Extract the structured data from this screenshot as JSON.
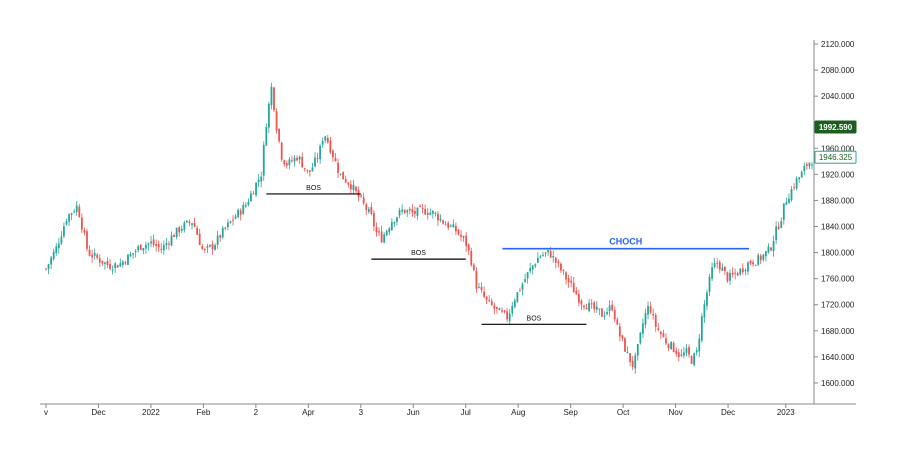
{
  "chart_data": {
    "type": "candlestick",
    "colors": {
      "up": "#26a69a",
      "down": "#ef5350",
      "choch": "#2962ff",
      "bos": "#000000",
      "price_badge": "#1b5e20"
    },
    "y_axis": {
      "ylim": [
        1580,
        2120
      ],
      "ticks": [
        "1600.000",
        "1640.000",
        "1680.000",
        "1720.000",
        "1760.000",
        "1800.000",
        "1840.000",
        "1880.000",
        "1920.000",
        "1960.000",
        "2040.000",
        "2080.000",
        "2120.000"
      ],
      "tick_values": [
        1600,
        1640,
        1680,
        1720,
        1760,
        1800,
        1840,
        1880,
        1920,
        1960,
        2040,
        2080,
        2120
      ]
    },
    "x_axis": {
      "labels": [
        "v",
        "Dec",
        "2022",
        "Feb",
        "2",
        "Apr",
        "3",
        "Jun",
        "Jul",
        "Aug",
        "Sep",
        "Oct",
        "Nov",
        "Dec",
        "2023"
      ],
      "positions": [
        0,
        10,
        20,
        30,
        40,
        50,
        60,
        70,
        80,
        90,
        100,
        110,
        120,
        130,
        141
      ]
    },
    "series_path": [
      [
        0,
        1775
      ],
      [
        2,
        1808
      ],
      [
        4,
        1855
      ],
      [
        6,
        1872
      ],
      [
        8,
        1800
      ],
      [
        10,
        1790
      ],
      [
        12,
        1780
      ],
      [
        14,
        1782
      ],
      [
        16,
        1795
      ],
      [
        18,
        1810
      ],
      [
        20,
        1815
      ],
      [
        22,
        1805
      ],
      [
        24,
        1825
      ],
      [
        26,
        1840
      ],
      [
        28,
        1848
      ],
      [
        30,
        1800
      ],
      [
        32,
        1812
      ],
      [
        34,
        1835
      ],
      [
        36,
        1855
      ],
      [
        38,
        1872
      ],
      [
        40,
        1905
      ],
      [
        41,
        1920
      ],
      [
        42,
        2000
      ],
      [
        43,
        2055
      ],
      [
        44,
        1990
      ],
      [
        45,
        1945
      ],
      [
        46,
        1935
      ],
      [
        48,
        1948
      ],
      [
        50,
        1920
      ],
      [
        52,
        1950
      ],
      [
        53,
        1985
      ],
      [
        54,
        1965
      ],
      [
        56,
        1920
      ],
      [
        58,
        1905
      ],
      [
        60,
        1880
      ],
      [
        62,
        1855
      ],
      [
        63,
        1830
      ],
      [
        64,
        1822
      ],
      [
        66,
        1850
      ],
      [
        68,
        1865
      ],
      [
        70,
        1860
      ],
      [
        72,
        1865
      ],
      [
        74,
        1860
      ],
      [
        76,
        1845
      ],
      [
        78,
        1835
      ],
      [
        80,
        1815
      ],
      [
        81,
        1790
      ],
      [
        82,
        1750
      ],
      [
        84,
        1725
      ],
      [
        86,
        1710
      ],
      [
        88,
        1700
      ],
      [
        89,
        1725
      ],
      [
        90,
        1740
      ],
      [
        92,
        1770
      ],
      [
        94,
        1795
      ],
      [
        96,
        1800
      ],
      [
        98,
        1775
      ],
      [
        100,
        1750
      ],
      [
        102,
        1725
      ],
      [
        104,
        1715
      ],
      [
        106,
        1705
      ],
      [
        108,
        1718
      ],
      [
        109,
        1680
      ],
      [
        110,
        1660
      ],
      [
        111,
        1640
      ],
      [
        112,
        1625
      ],
      [
        113,
        1660
      ],
      [
        114,
        1700
      ],
      [
        115,
        1720
      ],
      [
        116,
        1690
      ],
      [
        118,
        1665
      ],
      [
        120,
        1650
      ],
      [
        121,
        1640
      ],
      [
        122,
        1648
      ],
      [
        123,
        1635
      ],
      [
        124,
        1645
      ],
      [
        125,
        1700
      ],
      [
        126,
        1740
      ],
      [
        127,
        1775
      ],
      [
        128,
        1785
      ],
      [
        130,
        1760
      ],
      [
        132,
        1770
      ],
      [
        134,
        1785
      ],
      [
        136,
        1790
      ],
      [
        138,
        1805
      ],
      [
        139,
        1830
      ],
      [
        140,
        1850
      ],
      [
        141,
        1880
      ],
      [
        142,
        1895
      ],
      [
        143,
        1910
      ],
      [
        144,
        1920
      ],
      [
        145,
        1935
      ],
      [
        146,
        1942
      ]
    ],
    "annotations": [
      {
        "label": "BOS",
        "y": 1890,
        "x_start": 42,
        "x_end": 60
      },
      {
        "label": "BOS",
        "y": 1790,
        "x_start": 62,
        "x_end": 80
      },
      {
        "label": "BOS",
        "y": 1690,
        "x_start": 83,
        "x_end": 103
      },
      {
        "label": "CHOCH",
        "y": 1806,
        "x_start": 87,
        "x_end": 134
      }
    ],
    "price_labels": [
      {
        "text": "1992.590",
        "y": 1992.59,
        "style": "filled"
      },
      {
        "text": "1946.325",
        "y": 1946.325,
        "style": "outline"
      }
    ]
  }
}
